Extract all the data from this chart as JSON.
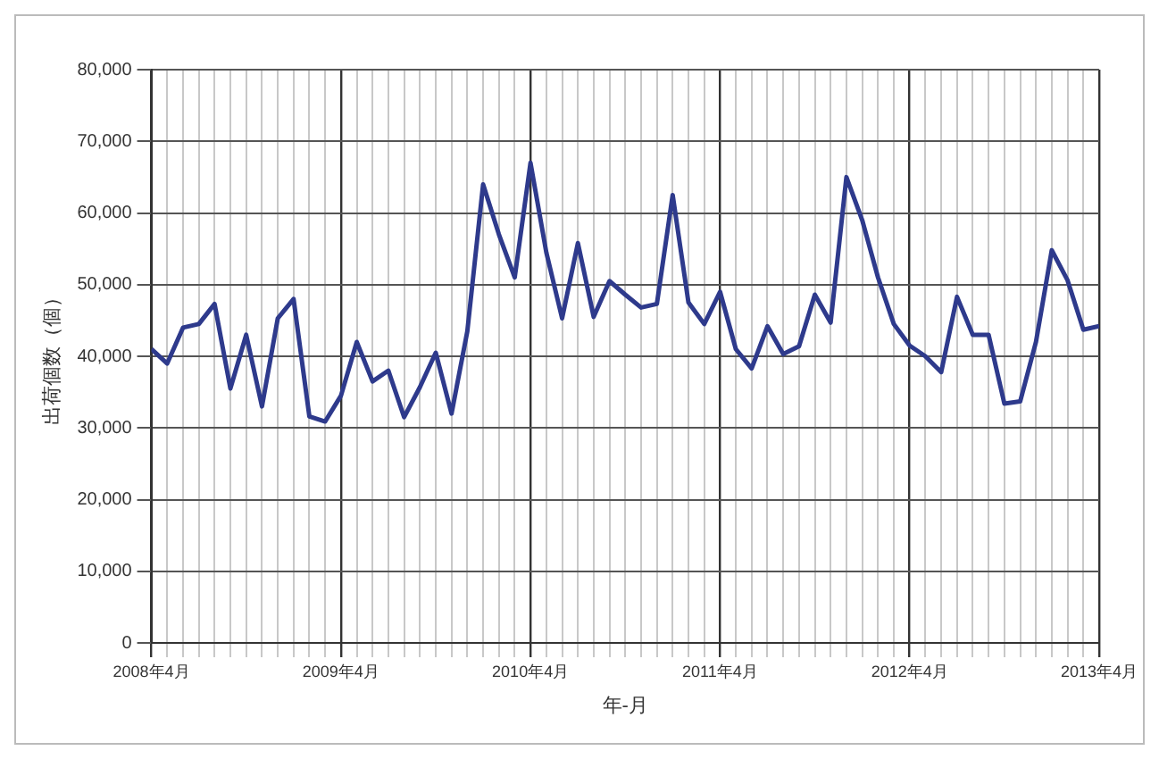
{
  "chart_data": {
    "type": "line",
    "xlabel": "年-月",
    "ylabel": "出荷個数（個）",
    "x": [
      "2008-04",
      "2008-05",
      "2008-06",
      "2008-07",
      "2008-08",
      "2008-09",
      "2008-10",
      "2008-11",
      "2008-12",
      "2009-01",
      "2009-02",
      "2009-03",
      "2009-04",
      "2009-05",
      "2009-06",
      "2009-07",
      "2009-08",
      "2009-09",
      "2009-10",
      "2009-11",
      "2009-12",
      "2010-01",
      "2010-02",
      "2010-03",
      "2010-04",
      "2010-05",
      "2010-06",
      "2010-07",
      "2010-08",
      "2010-09",
      "2010-10",
      "2010-11",
      "2010-12",
      "2011-01",
      "2011-02",
      "2011-03",
      "2011-04",
      "2011-05",
      "2011-06",
      "2011-07",
      "2011-08",
      "2011-09",
      "2011-10",
      "2011-11",
      "2011-12",
      "2012-01",
      "2012-02",
      "2012-03",
      "2012-04",
      "2012-05",
      "2012-06",
      "2012-07",
      "2012-08",
      "2012-09",
      "2012-10",
      "2012-11",
      "2012-12",
      "2013-01",
      "2013-02",
      "2013-03",
      "2013-04"
    ],
    "series": [
      {
        "color": "#2e3a8c",
        "values": [
          41000,
          39000,
          44000,
          44500,
          47300,
          35500,
          43000,
          33000,
          45300,
          48000,
          31600,
          30900,
          34500,
          42000,
          36500,
          38000,
          31500,
          35700,
          40500,
          32000,
          43500,
          64000,
          57000,
          51000,
          67000,
          54500,
          45300,
          55800,
          45500,
          50500,
          48600,
          46800,
          47300,
          62500,
          47500,
          44500,
          49000,
          41000,
          38300,
          44200,
          40300,
          41400,
          48600,
          44700,
          65000,
          59000,
          51000,
          44500,
          41500,
          40000,
          37800,
          48300,
          43000,
          43000,
          33400,
          33700,
          42000,
          54800,
          50600,
          43700,
          44200
        ]
      }
    ],
    "xlim": [
      "2008-04",
      "2013-04"
    ],
    "xticks": [
      {
        "value": "2008-04",
        "label": "2008年4月"
      },
      {
        "value": "2008-05",
        "label": null
      },
      {
        "value": "2008-06",
        "label": null
      },
      {
        "value": "2008-07",
        "label": null
      },
      {
        "value": "2008-08",
        "label": null
      },
      {
        "value": "2008-09",
        "label": null
      },
      {
        "value": "2008-10",
        "label": null
      },
      {
        "value": "2008-11",
        "label": null
      },
      {
        "value": "2008-12",
        "label": null
      },
      {
        "value": "2009-01",
        "label": null
      },
      {
        "value": "2009-02",
        "label": null
      },
      {
        "value": "2009-03",
        "label": null
      },
      {
        "value": "2009-04",
        "label": "2009年4月"
      },
      {
        "value": "2009-05",
        "label": null
      },
      {
        "value": "2009-06",
        "label": null
      },
      {
        "value": "2009-07",
        "label": null
      },
      {
        "value": "2009-08",
        "label": null
      },
      {
        "value": "2009-09",
        "label": null
      },
      {
        "value": "2009-10",
        "label": null
      },
      {
        "value": "2009-11",
        "label": null
      },
      {
        "value": "2009-12",
        "label": null
      },
      {
        "value": "2010-01",
        "label": null
      },
      {
        "value": "2010-02",
        "label": null
      },
      {
        "value": "2010-03",
        "label": null
      },
      {
        "value": "2010-04",
        "label": "2010年4月"
      },
      {
        "value": "2010-05",
        "label": null
      },
      {
        "value": "2010-06",
        "label": null
      },
      {
        "value": "2010-07",
        "label": null
      },
      {
        "value": "2010-08",
        "label": null
      },
      {
        "value": "2010-09",
        "label": null
      },
      {
        "value": "2010-10",
        "label": null
      },
      {
        "value": "2010-11",
        "label": null
      },
      {
        "value": "2010-12",
        "label": null
      },
      {
        "value": "2011-01",
        "label": null
      },
      {
        "value": "2011-02",
        "label": null
      },
      {
        "value": "2011-03",
        "label": null
      },
      {
        "value": "2011-04",
        "label": "2011年4月"
      },
      {
        "value": "2011-05",
        "label": null
      },
      {
        "value": "2011-06",
        "label": null
      },
      {
        "value": "2011-07",
        "label": null
      },
      {
        "value": "2011-08",
        "label": null
      },
      {
        "value": "2011-09",
        "label": null
      },
      {
        "value": "2011-10",
        "label": null
      },
      {
        "value": "2011-11",
        "label": null
      },
      {
        "value": "2011-12",
        "label": null
      },
      {
        "value": "2012-01",
        "label": null
      },
      {
        "value": "2012-02",
        "label": null
      },
      {
        "value": "2012-03",
        "label": null
      },
      {
        "value": "2012-04",
        "label": "2012年4月"
      },
      {
        "value": "2012-05",
        "label": null
      },
      {
        "value": "2012-06",
        "label": null
      },
      {
        "value": "2012-07",
        "label": null
      },
      {
        "value": "2012-08",
        "label": null
      },
      {
        "value": "2012-09",
        "label": null
      },
      {
        "value": "2012-10",
        "label": null
      },
      {
        "value": "2012-11",
        "label": null
      },
      {
        "value": "2012-12",
        "label": null
      },
      {
        "value": "2013-01",
        "label": null
      },
      {
        "value": "2013-02",
        "label": null
      },
      {
        "value": "2013-03",
        "label": null
      },
      {
        "value": "2013-04",
        "label": "2013年4月"
      }
    ],
    "ylim": [
      0,
      80000
    ],
    "yticks": [
      {
        "value": 0,
        "label": "0"
      },
      {
        "value": 10000,
        "label": "10,000"
      },
      {
        "value": 20000,
        "label": "20,000"
      },
      {
        "value": 30000,
        "label": "30,000"
      },
      {
        "value": 40000,
        "label": "40,000"
      },
      {
        "value": 50000,
        "label": "50,000"
      },
      {
        "value": 60000,
        "label": "60,000"
      },
      {
        "value": 70000,
        "label": "70,000"
      },
      {
        "value": 80000,
        "label": "80,000"
      }
    ],
    "grid": true,
    "legend": false,
    "marker": "none",
    "line_style": "solid"
  }
}
